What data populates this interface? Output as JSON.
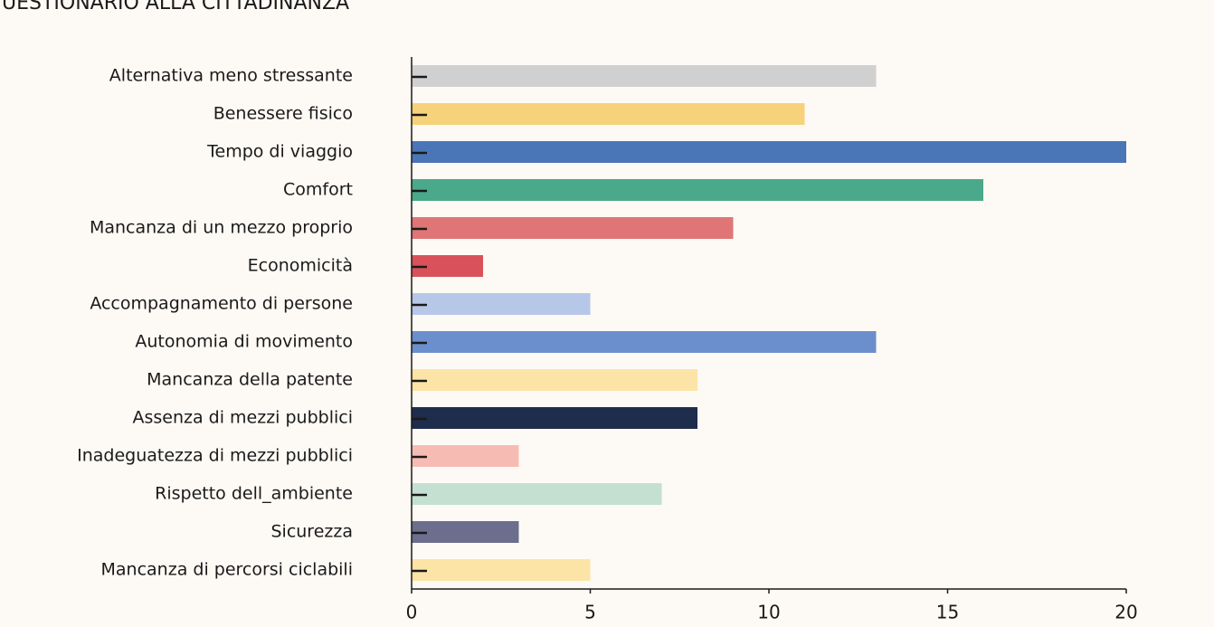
{
  "chart_data": {
    "type": "barh",
    "title": "UESTIONARIO ALLA CITTADINANZA",
    "categories": [
      "Alternativa meno stressante",
      "Benessere fisico",
      "Tempo di viaggio",
      "Comfort",
      "Mancanza di un mezzo proprio",
      "Economicità",
      "Accompagnamento di persone",
      "Autonomia di movimento",
      "Mancanza della patente",
      "Assenza di mezzi pubblici",
      "Inadeguatezza di mezzi pubblici",
      "Rispetto dell_ambiente",
      "Sicurezza",
      "Mancanza di percorsi ciclabili"
    ],
    "values": [
      13,
      11,
      20,
      16,
      9,
      2,
      5,
      13,
      8,
      8,
      3,
      7,
      3,
      5
    ],
    "colors": [
      "#d0d0d0",
      "#f6d27a",
      "#4a76b8",
      "#4aa98a",
      "#e07575",
      "#d9515a",
      "#b7c7e8",
      "#6b8fcc",
      "#fbe4a6",
      "#1f2d4d",
      "#f6bcb3",
      "#c4e0d2",
      "#6b6e8c",
      "#fbe4a6"
    ],
    "xlim": [
      0,
      20
    ],
    "xticks": [
      0,
      5,
      10,
      15,
      20
    ]
  }
}
